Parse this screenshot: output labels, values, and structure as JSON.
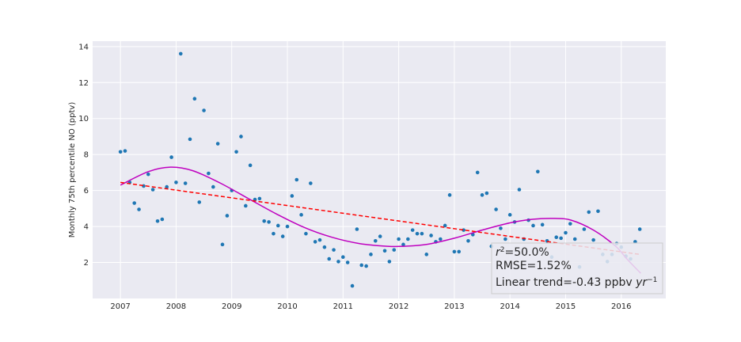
{
  "chart_data": {
    "type": "scatter",
    "xlabel": "",
    "ylabel": "Monthly 75th percentile NO (pptv)",
    "xlim": [
      2006.5,
      2016.8
    ],
    "ylim": [
      0,
      14.3
    ],
    "x_ticks": [
      2007,
      2008,
      2009,
      2010,
      2011,
      2012,
      2013,
      2014,
      2015,
      2016
    ],
    "y_ticks": [
      2,
      4,
      6,
      8,
      10,
      12,
      14
    ],
    "grid": true,
    "colors": {
      "background": "#eaeaf2",
      "grid": "#ffffff",
      "points": "#1f77b4",
      "trend_line": "#ff0000",
      "fit_curve": "#bf00bf"
    },
    "points": [
      {
        "x": 2007.0,
        "y": 8.15
      },
      {
        "x": 2007.083,
        "y": 8.2
      },
      {
        "x": 2007.167,
        "y": 6.45
      },
      {
        "x": 2007.25,
        "y": 5.3
      },
      {
        "x": 2007.333,
        "y": 4.95
      },
      {
        "x": 2007.417,
        "y": 6.25
      },
      {
        "x": 2007.5,
        "y": 6.9
      },
      {
        "x": 2007.583,
        "y": 6.05
      },
      {
        "x": 2007.667,
        "y": 4.3
      },
      {
        "x": 2007.75,
        "y": 4.4
      },
      {
        "x": 2007.833,
        "y": 6.2
      },
      {
        "x": 2007.917,
        "y": 7.85
      },
      {
        "x": 2008.0,
        "y": 6.45
      },
      {
        "x": 2008.083,
        "y": 13.6
      },
      {
        "x": 2008.167,
        "y": 6.4
      },
      {
        "x": 2008.25,
        "y": 8.85
      },
      {
        "x": 2008.333,
        "y": 11.1
      },
      {
        "x": 2008.417,
        "y": 5.35
      },
      {
        "x": 2008.5,
        "y": 10.45
      },
      {
        "x": 2008.583,
        "y": 6.95
      },
      {
        "x": 2008.667,
        "y": 6.2
      },
      {
        "x": 2008.75,
        "y": 8.6
      },
      {
        "x": 2008.833,
        "y": 3.0
      },
      {
        "x": 2008.917,
        "y": 4.6
      },
      {
        "x": 2009.0,
        "y": 6.0
      },
      {
        "x": 2009.083,
        "y": 8.15
      },
      {
        "x": 2009.167,
        "y": 9.0
      },
      {
        "x": 2009.25,
        "y": 5.15
      },
      {
        "x": 2009.333,
        "y": 7.4
      },
      {
        "x": 2009.417,
        "y": 5.5
      },
      {
        "x": 2009.5,
        "y": 5.55
      },
      {
        "x": 2009.583,
        "y": 4.3
      },
      {
        "x": 2009.667,
        "y": 4.25
      },
      {
        "x": 2009.75,
        "y": 3.6
      },
      {
        "x": 2009.833,
        "y": 4.05
      },
      {
        "x": 2009.917,
        "y": 3.45
      },
      {
        "x": 2010.0,
        "y": 4.0
      },
      {
        "x": 2010.083,
        "y": 5.7
      },
      {
        "x": 2010.167,
        "y": 6.6
      },
      {
        "x": 2010.25,
        "y": 4.65
      },
      {
        "x": 2010.333,
        "y": 3.6
      },
      {
        "x": 2010.417,
        "y": 6.4
      },
      {
        "x": 2010.5,
        "y": 3.15
      },
      {
        "x": 2010.583,
        "y": 3.25
      },
      {
        "x": 2010.667,
        "y": 2.85
      },
      {
        "x": 2010.75,
        "y": 2.2
      },
      {
        "x": 2010.833,
        "y": 2.7
      },
      {
        "x": 2010.917,
        "y": 2.05
      },
      {
        "x": 2011.0,
        "y": 2.3
      },
      {
        "x": 2011.083,
        "y": 2.0
      },
      {
        "x": 2011.167,
        "y": 0.7
      },
      {
        "x": 2011.25,
        "y": 3.85
      },
      {
        "x": 2011.333,
        "y": 1.85
      },
      {
        "x": 2011.417,
        "y": 1.8
      },
      {
        "x": 2011.5,
        "y": 2.45
      },
      {
        "x": 2011.583,
        "y": 3.2
      },
      {
        "x": 2011.667,
        "y": 3.45
      },
      {
        "x": 2011.75,
        "y": 2.65
      },
      {
        "x": 2011.833,
        "y": 2.05
      },
      {
        "x": 2011.917,
        "y": 2.7
      },
      {
        "x": 2012.0,
        "y": 3.3
      },
      {
        "x": 2012.083,
        "y": 3.0
      },
      {
        "x": 2012.167,
        "y": 3.3
      },
      {
        "x": 2012.25,
        "y": 3.8
      },
      {
        "x": 2012.333,
        "y": 3.6
      },
      {
        "x": 2012.417,
        "y": 3.6
      },
      {
        "x": 2012.5,
        "y": 2.45
      },
      {
        "x": 2012.583,
        "y": 3.5
      },
      {
        "x": 2012.667,
        "y": 3.15
      },
      {
        "x": 2012.75,
        "y": 3.3
      },
      {
        "x": 2012.833,
        "y": 4.05
      },
      {
        "x": 2012.917,
        "y": 5.75
      },
      {
        "x": 2013.0,
        "y": 2.6
      },
      {
        "x": 2013.083,
        "y": 2.6
      },
      {
        "x": 2013.167,
        "y": 3.8
      },
      {
        "x": 2013.25,
        "y": 3.2
      },
      {
        "x": 2013.333,
        "y": 3.55
      },
      {
        "x": 2013.417,
        "y": 7.0
      },
      {
        "x": 2013.5,
        "y": 5.75
      },
      {
        "x": 2013.583,
        "y": 5.85
      },
      {
        "x": 2013.667,
        "y": 2.9
      },
      {
        "x": 2013.75,
        "y": 4.95
      },
      {
        "x": 2013.833,
        "y": 3.9
      },
      {
        "x": 2013.917,
        "y": 3.3
      },
      {
        "x": 2014.0,
        "y": 4.65
      },
      {
        "x": 2014.083,
        "y": 4.25
      },
      {
        "x": 2014.167,
        "y": 6.05
      },
      {
        "x": 2014.25,
        "y": 3.3
      },
      {
        "x": 2014.333,
        "y": 4.35
      },
      {
        "x": 2014.417,
        "y": 4.05
      },
      {
        "x": 2014.5,
        "y": 7.05
      },
      {
        "x": 2014.583,
        "y": 4.1
      },
      {
        "x": 2014.667,
        "y": 3.2
      },
      {
        "x": 2014.75,
        "y": 2.3
      },
      {
        "x": 2014.833,
        "y": 3.4
      },
      {
        "x": 2014.917,
        "y": 3.35
      },
      {
        "x": 2015.0,
        "y": 3.65
      },
      {
        "x": 2015.083,
        "y": 4.15
      },
      {
        "x": 2015.167,
        "y": 3.3
      },
      {
        "x": 2015.25,
        "y": 1.75
      },
      {
        "x": 2015.333,
        "y": 3.85
      },
      {
        "x": 2015.417,
        "y": 4.8
      },
      {
        "x": 2015.5,
        "y": 3.25
      },
      {
        "x": 2015.583,
        "y": 4.85
      },
      {
        "x": 2015.667,
        "y": 2.45
      },
      {
        "x": 2015.75,
        "y": 2.05
      },
      {
        "x": 2015.833,
        "y": 2.45
      },
      {
        "x": 2015.917,
        "y": 3.05
      },
      {
        "x": 2016.0,
        "y": 2.85
      },
      {
        "x": 2016.083,
        "y": 2.35
      },
      {
        "x": 2016.167,
        "y": 2.2
      },
      {
        "x": 2016.25,
        "y": 3.15
      },
      {
        "x": 2016.333,
        "y": 3.85
      }
    ],
    "trend_line": {
      "x": [
        2007.0,
        2016.33
      ],
      "y": [
        6.45,
        2.45
      ]
    },
    "fit_curve": {
      "x": [
        2007.0,
        2007.5,
        2007.9,
        2008.3,
        2008.8,
        2009.3,
        2009.8,
        2010.3,
        2010.8,
        2011.3,
        2011.8,
        2012.1,
        2012.5,
        2013.0,
        2013.5,
        2014.0,
        2014.4,
        2014.8,
        2015.1,
        2015.5,
        2015.9,
        2016.1,
        2016.35
      ],
      "y": [
        6.3,
        7.05,
        7.3,
        7.1,
        6.4,
        5.55,
        4.7,
        3.95,
        3.4,
        3.05,
        2.9,
        2.9,
        3.0,
        3.35,
        3.8,
        4.2,
        4.4,
        4.45,
        4.35,
        3.8,
        2.9,
        2.2,
        1.4
      ]
    },
    "stats": {
      "r2": "50.0%",
      "rmse": "RMSE=1.52%",
      "trend": "Linear trend=-0.43 ppbv"
    }
  }
}
